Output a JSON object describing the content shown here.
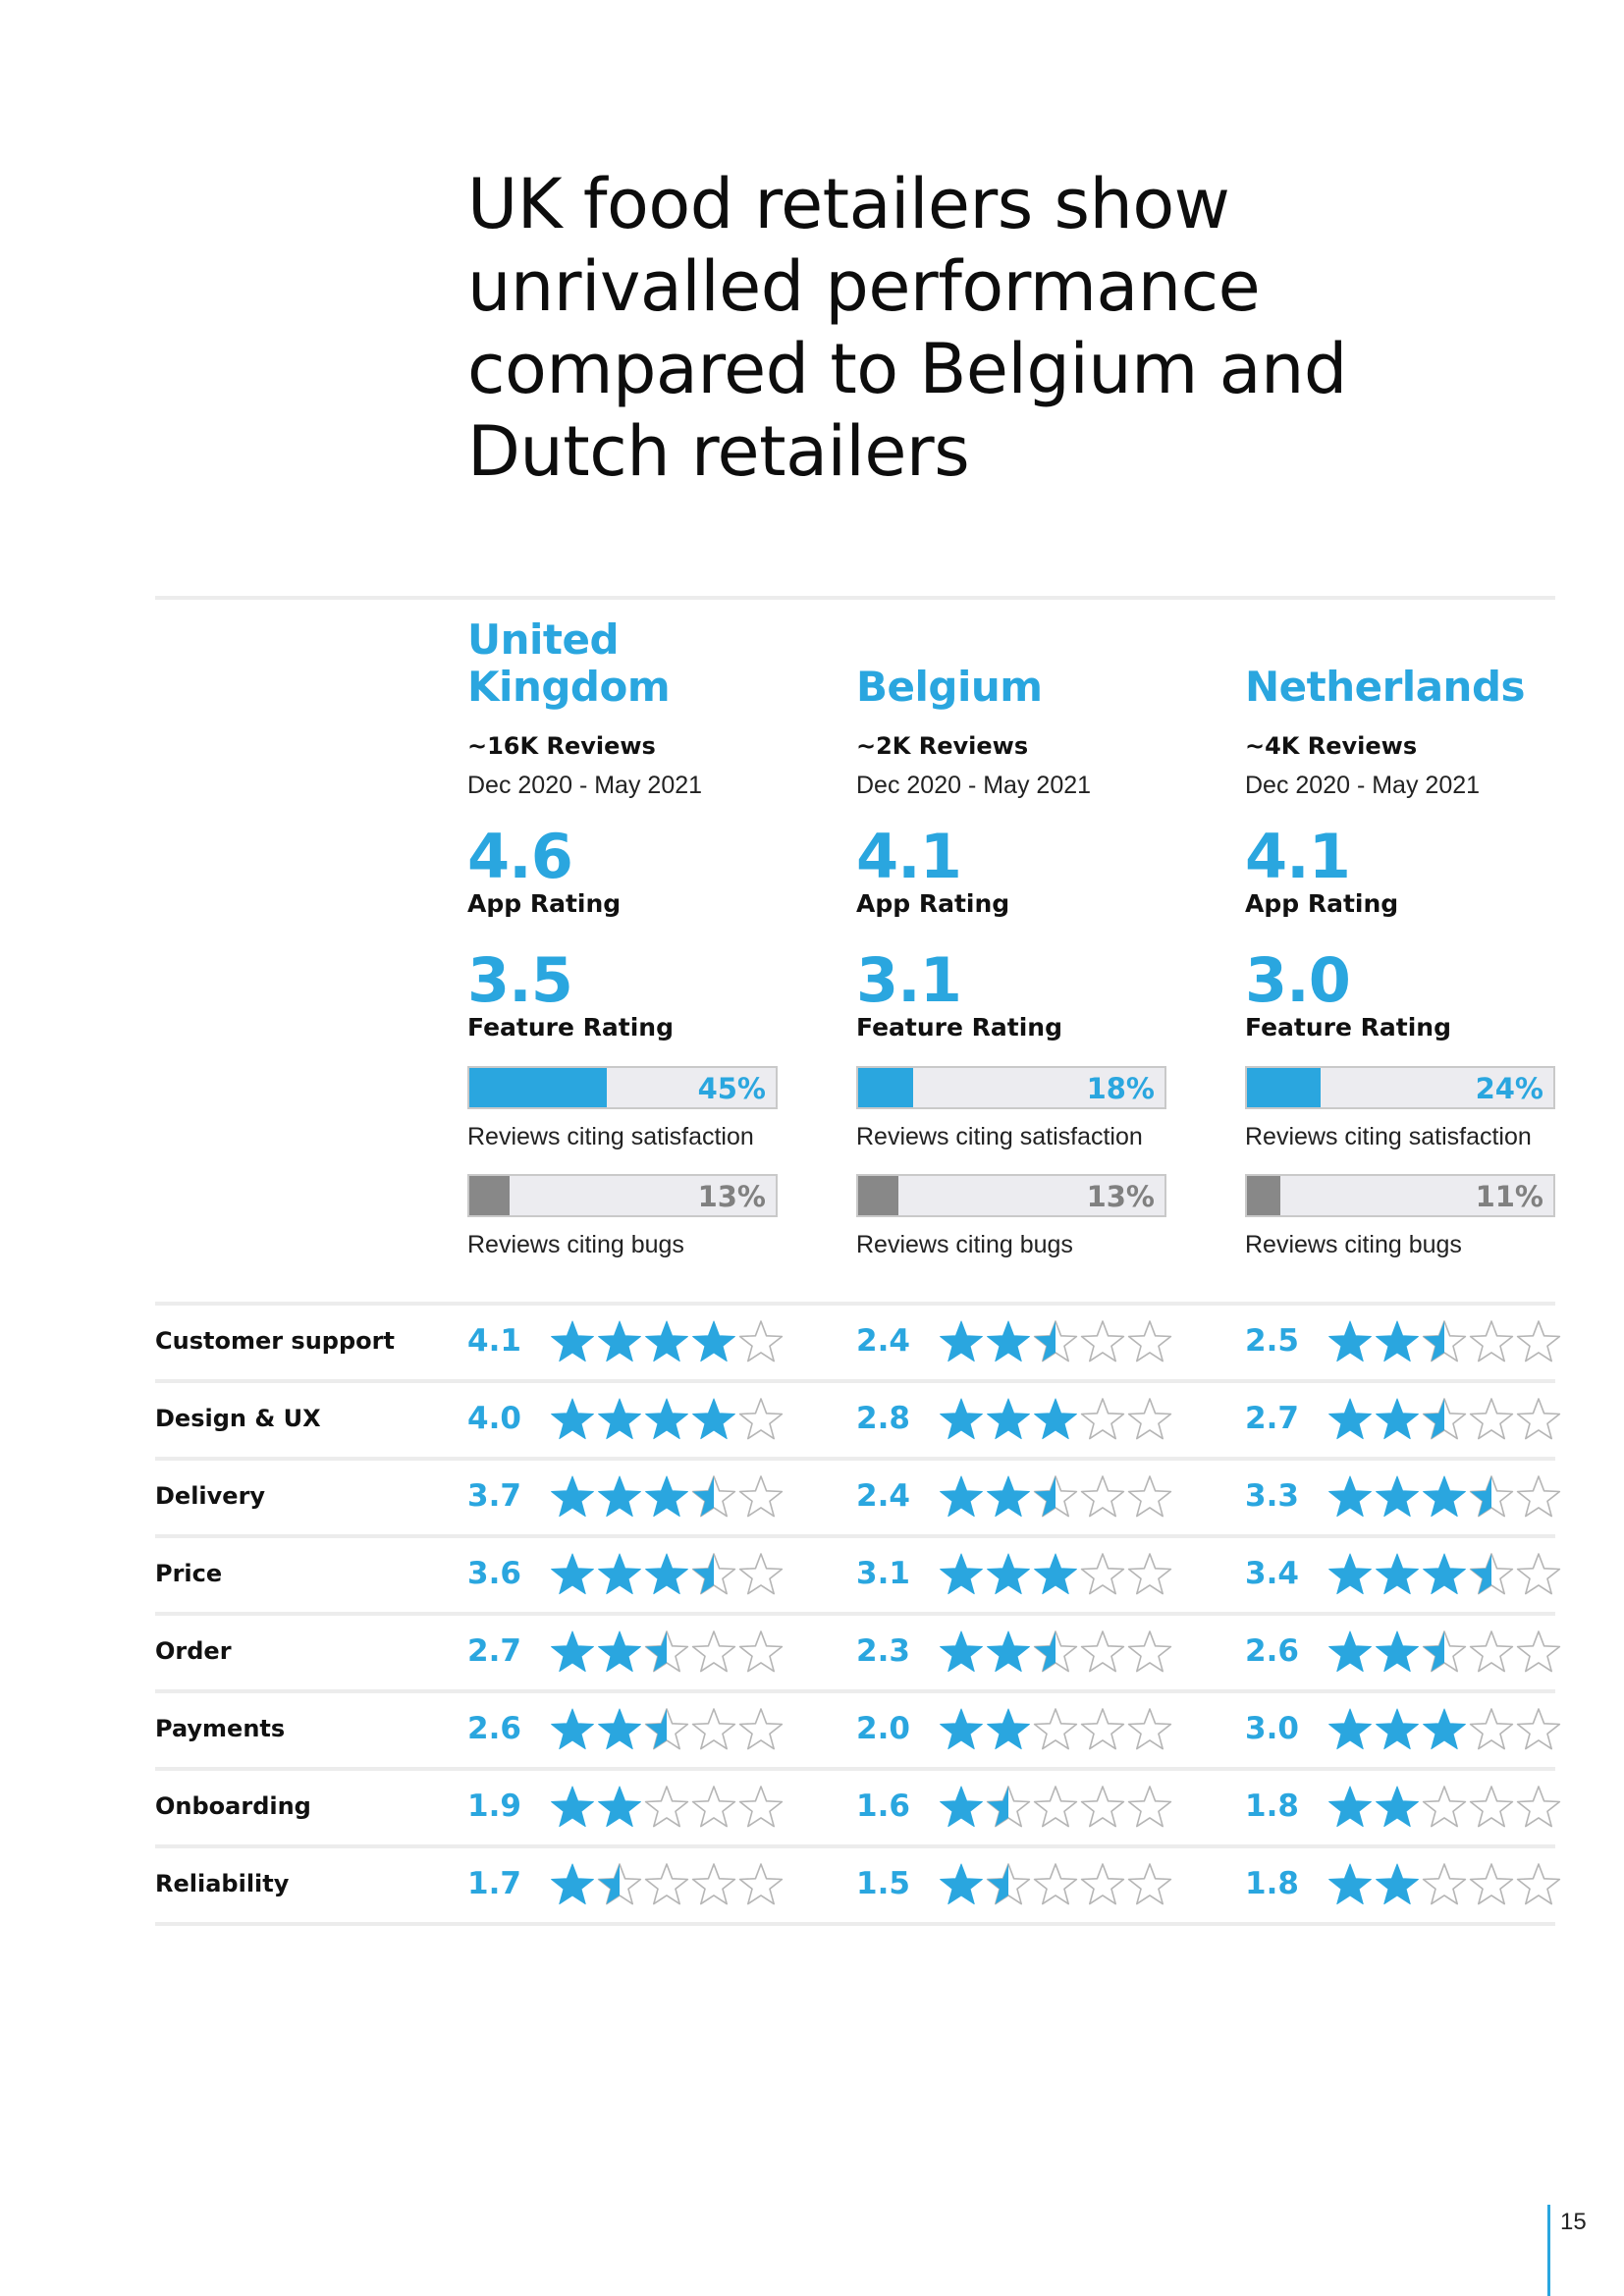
{
  "title": "UK food retailers show unrivalled performance compared to Belgium and Dutch retailers",
  "colors": {
    "accent": "#2aa6df",
    "bug": "#888888",
    "text": "#111111",
    "rule": "#ececec"
  },
  "labels": {
    "app_rating": "App Rating",
    "feature_rating": "Feature Rating",
    "satisfaction_caption": "Reviews citing satisfaction",
    "bugs_caption": "Reviews citing bugs"
  },
  "countries": [
    {
      "name": "United Kingdom",
      "reviews": "~16K Reviews",
      "period": "Dec 2020 - May 2021",
      "app_rating": "4.6",
      "feature_rating": "3.5",
      "satisfaction_pct": 45,
      "satisfaction_label": "45%",
      "bugs_pct": 13,
      "bugs_label": "13%"
    },
    {
      "name": "Belgium",
      "reviews": "~2K Reviews",
      "period": "Dec 2020 - May 2021",
      "app_rating": "4.1",
      "feature_rating": "3.1",
      "satisfaction_pct": 18,
      "satisfaction_label": "18%",
      "bugs_pct": 13,
      "bugs_label": "13%"
    },
    {
      "name": "Netherlands",
      "reviews": "~4K Reviews",
      "period": "Dec 2020 - May 2021",
      "app_rating": "4.1",
      "feature_rating": "3.0",
      "satisfaction_pct": 24,
      "satisfaction_label": "24%",
      "bugs_pct": 11,
      "bugs_label": "11%"
    }
  ],
  "feature_rows": [
    {
      "label": "Customer support",
      "scores": [
        "4.1",
        "2.4",
        "2.5"
      ],
      "stars": [
        4,
        2.5,
        2.5
      ]
    },
    {
      "label": "Design & UX",
      "scores": [
        "4.0",
        "2.8",
        "2.7"
      ],
      "stars": [
        4,
        3,
        2.5
      ]
    },
    {
      "label": "Delivery",
      "scores": [
        "3.7",
        "2.4",
        "3.3"
      ],
      "stars": [
        3.5,
        2.5,
        3.5
      ]
    },
    {
      "label": "Price",
      "scores": [
        "3.6",
        "3.1",
        "3.4"
      ],
      "stars": [
        3.5,
        3,
        3.5
      ]
    },
    {
      "label": "Order",
      "scores": [
        "2.7",
        "2.3",
        "2.6"
      ],
      "stars": [
        2.5,
        2.5,
        2.5
      ]
    },
    {
      "label": "Payments",
      "scores": [
        "2.6",
        "2.0",
        "3.0"
      ],
      "stars": [
        2.5,
        2,
        3
      ]
    },
    {
      "label": "Onboarding",
      "scores": [
        "1.9",
        "1.6",
        "1.8"
      ],
      "stars": [
        2,
        1.5,
        2
      ]
    },
    {
      "label": "Reliability",
      "scores": [
        "1.7",
        "1.5",
        "1.8"
      ],
      "stars": [
        1.5,
        1.5,
        2
      ]
    }
  ],
  "page_number": "15"
}
